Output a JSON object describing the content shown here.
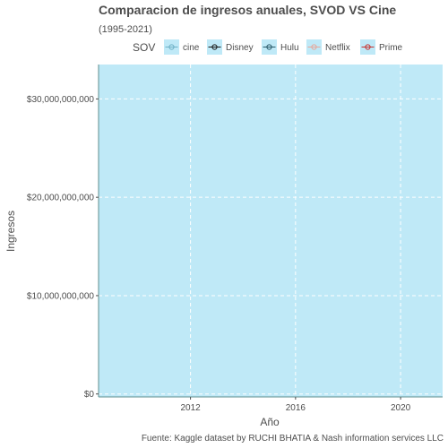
{
  "chart_data": {
    "type": "line",
    "title": "Comparacion de ingresos anuales, SVOD VS Cine",
    "subtitle": "(1995-2021)",
    "xlabel": "Año",
    "ylabel": "Ingresos",
    "caption": "Fuente: Kaggle dataset by RUCHI BHATIA & Nash information services LLC",
    "legend_title": "SOV",
    "legend_placement": "top",
    "xlim": [
      2008.5,
      2021.6
    ],
    "ylim": [
      -300000000,
      33500000000
    ],
    "x_ticks": [
      2012,
      2016,
      2020
    ],
    "x_tick_labels": [
      "2012",
      "2016",
      "2020"
    ],
    "y_ticks": [
      0,
      10000000000,
      20000000000,
      30000000000
    ],
    "y_tick_labels": [
      "$0",
      "$10,000,000,000",
      "$20,000,000,000",
      "$30,000,000,000"
    ],
    "grid": true,
    "colors": {
      "panel_background": "#bfe9f7",
      "grid_line": "#ffffff",
      "axis_line": "#5f8f8f"
    },
    "series": [
      {
        "name": "cine",
        "color": "#6fb1c6",
        "values": []
      },
      {
        "name": "Disney",
        "color": "#1a1a1a",
        "values": []
      },
      {
        "name": "Hulu",
        "color": "#2b5b6b",
        "values": []
      },
      {
        "name": "Netflix",
        "color": "#e7a79a",
        "values": []
      },
      {
        "name": "Prime",
        "color": "#c8332f",
        "values": []
      }
    ]
  }
}
